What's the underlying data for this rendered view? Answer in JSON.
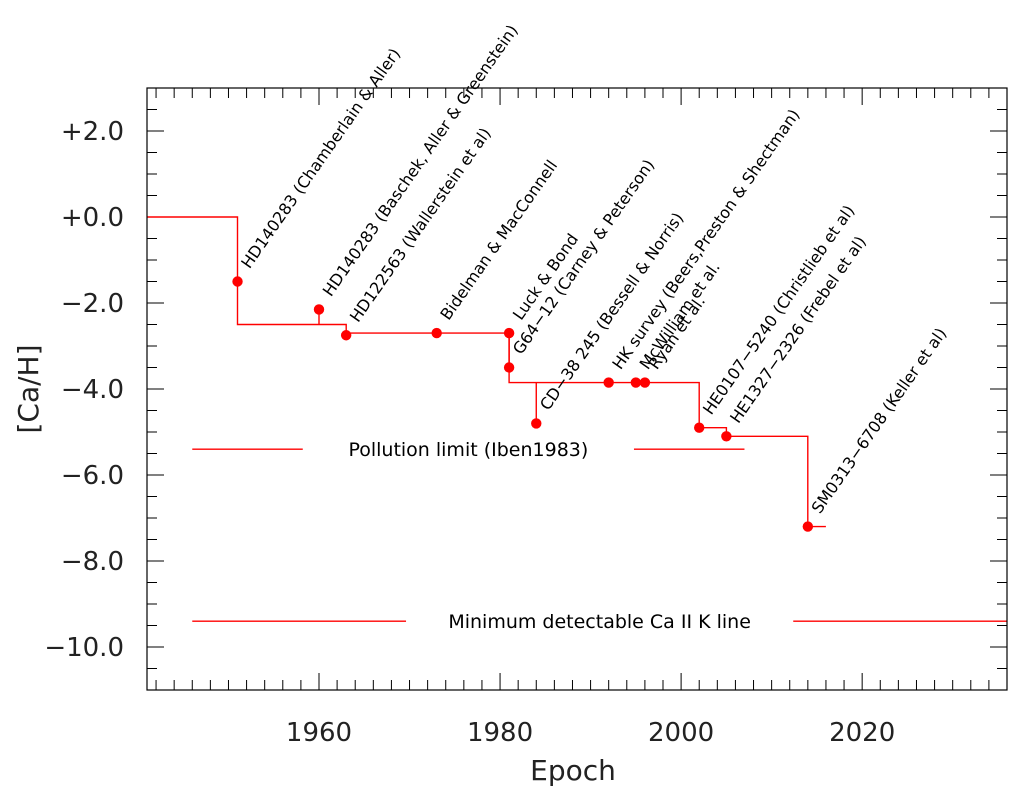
{
  "chart_data": {
    "type": "scatter",
    "title": "",
    "xlabel": "Epoch",
    "ylabel": "[Ca/H]",
    "xlim": [
      1941,
      2036
    ],
    "ylim": [
      -11,
      3
    ],
    "x_ticks": [
      1960,
      1980,
      2000,
      2020
    ],
    "x_tick_labels": [
      "1960",
      "1980",
      "2000",
      "2020"
    ],
    "y_ticks": [
      2,
      0,
      -2,
      -4,
      -6,
      -8,
      -10
    ],
    "y_tick_labels": [
      "+2.0",
      "+0.0",
      "−2.0",
      "−4.0",
      "−6.0",
      "−8.0",
      "−10.0"
    ],
    "grid": false,
    "color": "#ff0000",
    "points": [
      {
        "x": 1951,
        "y": -1.5,
        "label": "HD140283 (Chamberlain & Aller)"
      },
      {
        "x": 1960,
        "y": -2.15,
        "label": "HD140283 (Baschek, Aller & Greenstein)"
      },
      {
        "x": 1963,
        "y": -2.75,
        "label": "HD122563 (Wallerstein et al)"
      },
      {
        "x": 1973,
        "y": -2.7,
        "label": "Bidelman & MacConnell"
      },
      {
        "x": 1981,
        "y": -2.7,
        "label": "Luck & Bond"
      },
      {
        "x": 1981,
        "y": -3.5,
        "label": "G64−12 (Carney & Peterson)"
      },
      {
        "x": 1984,
        "y": -4.8,
        "label": "CD−38 245 (Bessell & Norris)"
      },
      {
        "x": 1992,
        "y": -3.85,
        "label": "HK survey (Beers,Preston & Shectman)"
      },
      {
        "x": 1995,
        "y": -3.85,
        "label": "McWilliam et al."
      },
      {
        "x": 1996,
        "y": -3.85,
        "label": "Ryan et al."
      },
      {
        "x": 2002,
        "y": -4.9,
        "label": "HE0107−5240 (Christlieb et al)"
      },
      {
        "x": 2005,
        "y": -5.1,
        "label": "HE1327−2326 (Frebel et al)"
      },
      {
        "x": 2014,
        "y": -7.2,
        "label": "SM0313−6708 (Keller et al)"
      }
    ],
    "step_line": {
      "x": [
        1941,
        1951,
        1951,
        1963,
        1963,
        1981,
        1981,
        1984,
        1984,
        2002,
        2002,
        2005,
        2005,
        2014,
        2014,
        2016
      ],
      "y": [
        0,
        0,
        -2.5,
        -2.5,
        -2.7,
        -2.7,
        -3.85,
        -3.85,
        -3.85,
        -3.85,
        -4.9,
        -4.9,
        -5.1,
        -5.1,
        -7.2,
        -7.2
      ]
    },
    "connectors": [
      {
        "x": 1960,
        "y1": -2.15,
        "y2": -2.5
      },
      {
        "x": 1981,
        "y1": -2.7,
        "y2": -3.5
      },
      {
        "x": 1984,
        "y1": -3.85,
        "y2": -4.8
      }
    ],
    "reference_lines": [
      {
        "label": "Pollution limit (Iben1983)",
        "y": -5.4,
        "x_start": 1946,
        "x_end": 2007
      },
      {
        "label": "Minimum detectable Ca II K line",
        "y": -9.4,
        "x_start": 1946,
        "x_end": 2036
      }
    ]
  }
}
